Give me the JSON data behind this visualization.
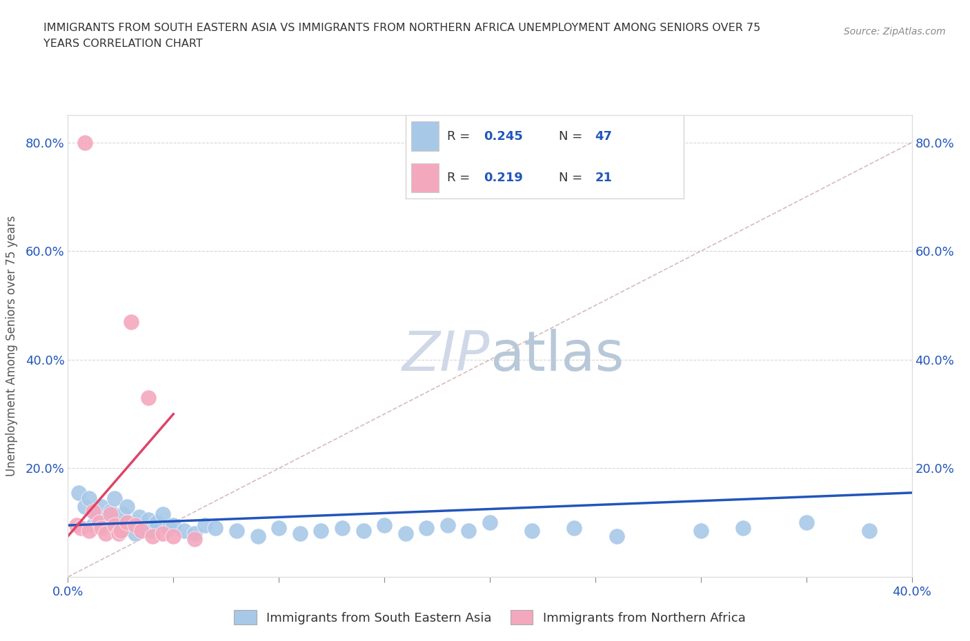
{
  "title_line1": "IMMIGRANTS FROM SOUTH EASTERN ASIA VS IMMIGRANTS FROM NORTHERN AFRICA UNEMPLOYMENT AMONG SENIORS OVER 75",
  "title_line2": "YEARS CORRELATION CHART",
  "source_text": "Source: ZipAtlas.com",
  "ylabel": "Unemployment Among Seniors over 75 years",
  "xlim": [
    0.0,
    0.4
  ],
  "ylim": [
    0.0,
    0.85
  ],
  "R_blue": 0.245,
  "N_blue": 47,
  "R_pink": 0.219,
  "N_pink": 21,
  "blue_color": "#a8c8e8",
  "pink_color": "#f4a8be",
  "blue_line_color": "#2255bb",
  "pink_line_color": "#dd4466",
  "diag_color": "#ccaaaa",
  "watermark_color": "#d0d8e8",
  "blue_scatter_x": [
    0.005,
    0.008,
    0.01,
    0.012,
    0.014,
    0.016,
    0.018,
    0.02,
    0.022,
    0.024,
    0.025,
    0.026,
    0.028,
    0.03,
    0.032,
    0.034,
    0.036,
    0.038,
    0.04,
    0.042,
    0.045,
    0.048,
    0.05,
    0.055,
    0.06,
    0.065,
    0.07,
    0.08,
    0.09,
    0.1,
    0.11,
    0.12,
    0.13,
    0.14,
    0.15,
    0.16,
    0.17,
    0.18,
    0.19,
    0.2,
    0.22,
    0.24,
    0.26,
    0.3,
    0.32,
    0.35,
    0.38
  ],
  "blue_scatter_y": [
    0.155,
    0.13,
    0.145,
    0.095,
    0.11,
    0.13,
    0.1,
    0.12,
    0.145,
    0.095,
    0.085,
    0.115,
    0.13,
    0.095,
    0.08,
    0.11,
    0.09,
    0.105,
    0.085,
    0.1,
    0.115,
    0.09,
    0.095,
    0.085,
    0.08,
    0.095,
    0.09,
    0.085,
    0.075,
    0.09,
    0.08,
    0.085,
    0.09,
    0.085,
    0.095,
    0.08,
    0.09,
    0.095,
    0.085,
    0.1,
    0.085,
    0.09,
    0.075,
    0.085,
    0.09,
    0.1,
    0.085
  ],
  "pink_scatter_x": [
    0.004,
    0.006,
    0.008,
    0.01,
    0.012,
    0.015,
    0.016,
    0.018,
    0.02,
    0.022,
    0.024,
    0.025,
    0.028,
    0.03,
    0.032,
    0.035,
    0.038,
    0.04,
    0.045,
    0.05,
    0.06
  ],
  "pink_scatter_y": [
    0.095,
    0.09,
    0.8,
    0.085,
    0.12,
    0.1,
    0.09,
    0.08,
    0.115,
    0.095,
    0.08,
    0.085,
    0.1,
    0.47,
    0.095,
    0.085,
    0.33,
    0.075,
    0.08,
    0.075,
    0.07
  ],
  "blue_trend_x0": 0.0,
  "blue_trend_x1": 0.4,
  "blue_trend_y0": 0.095,
  "blue_trend_y1": 0.155,
  "pink_trend_x0": 0.0,
  "pink_trend_x1": 0.05,
  "pink_trend_y0": 0.075,
  "pink_trend_y1": 0.3
}
